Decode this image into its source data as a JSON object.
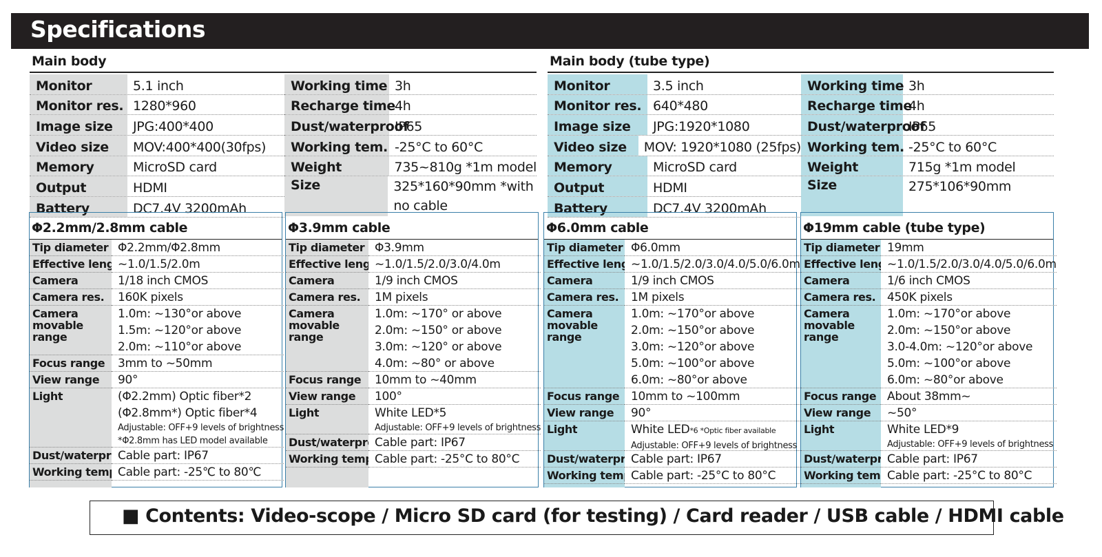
{
  "title": "Specifications",
  "main_body": {
    "title": "Main body",
    "left": [
      {
        "label": "Monitor",
        "value": "5.1 inch"
      },
      {
        "label": "Monitor res.",
        "value": "1280*960"
      },
      {
        "label": "Image size",
        "value": "JPG:400*400"
      },
      {
        "label": "Video size",
        "value": "MOV:400*400(30fps)"
      },
      {
        "label": "Memory",
        "value": "MicroSD card"
      },
      {
        "label": "Output",
        "value": "HDMI"
      },
      {
        "label": "Battery",
        "value": "DC7.4V 3200mAh"
      }
    ],
    "right": [
      {
        "label": "Working time",
        "value": "3h"
      },
      {
        "label": "Recharge time",
        "value": "4h"
      },
      {
        "label": "Dust/waterproof",
        "value": "IP65"
      },
      {
        "label": "Working tem.",
        "value": "-25°C to 60°C"
      },
      {
        "label": "Weight",
        "value": "735~810g *1m model"
      },
      {
        "label": "Size",
        "value": "325*160*90mm *with no cable"
      }
    ]
  },
  "main_body_tube": {
    "title": "Main body (tube type)",
    "left": [
      {
        "label": "Monitor",
        "value": "3.5 inch"
      },
      {
        "label": "Monitor res.",
        "value": "640*480"
      },
      {
        "label": "Image size",
        "value": "JPG:1920*1080"
      },
      {
        "label": "Video size",
        "value": "MOV: 1920*1080 (25fps)"
      },
      {
        "label": "Memory",
        "value": "MicroSD card"
      },
      {
        "label": "Output",
        "value": "HDMI"
      },
      {
        "label": "Battery",
        "value": "DC7.4V 3200mAh"
      }
    ],
    "right": [
      {
        "label": "Working time",
        "value": "3h"
      },
      {
        "label": "Recharge time",
        "value": "4h"
      },
      {
        "label": "Dust/waterproof",
        "value": "IP65"
      },
      {
        "label": "Working tem.",
        "value": "-25°C to 60°C"
      },
      {
        "label": "Weight",
        "value": "715g *1m model"
      },
      {
        "label": "Size",
        "value": "275*106*90mm"
      }
    ]
  },
  "cables": [
    {
      "title": "Φ2.2mm/2.8mm cable",
      "rows": [
        {
          "label": [
            "Tip diameter"
          ],
          "lines": [
            {
              "t": "Φ2.2mm/Φ2.8mm"
            }
          ]
        },
        {
          "label": [
            "Effective length"
          ],
          "lines": [
            {
              "t": "~1.0/1.5/2.0m"
            }
          ]
        },
        {
          "label": [
            "Camera"
          ],
          "lines": [
            {
              "t": "1/18 inch CMOS"
            }
          ]
        },
        {
          "label": [
            "Camera res."
          ],
          "lines": [
            {
              "t": "160K pixels"
            }
          ]
        },
        {
          "label": [
            "Camera",
            "movable",
            "range"
          ],
          "lines": [
            {
              "t": "1.0m: ~130°or above"
            },
            {
              "t": "1.5m: ~120°or above"
            },
            {
              "t": "2.0m: ~110°or above"
            }
          ]
        },
        {
          "label": [
            "Focus range"
          ],
          "lines": [
            {
              "t": "3mm to ~50mm"
            }
          ]
        },
        {
          "label": [
            "View range"
          ],
          "lines": [
            {
              "t": "90°"
            }
          ]
        },
        {
          "label": [
            "Light"
          ],
          "lines": [
            {
              "t": "(Φ2.2mm) Optic fiber*2"
            },
            {
              "t": "(Φ2.8mm*) Optic fiber*4"
            },
            {
              "t": "Adjustable: OFF+9 levels of brightness",
              "s": 1
            },
            {
              "t": "*Φ2.8mm has LED model available",
              "s": 1
            }
          ]
        },
        {
          "label": [
            "Dust/waterproof"
          ],
          "lines": [
            {
              "t": "Cable part: IP67"
            }
          ]
        },
        {
          "label": [
            "Working temp"
          ],
          "lines": [
            {
              "t": "Cable part: -25℃ to 80℃"
            }
          ]
        }
      ]
    },
    {
      "title": "Φ3.9mm cable",
      "rows": [
        {
          "label": [
            "Tip diameter"
          ],
          "lines": [
            {
              "t": "Φ3.9mm"
            }
          ]
        },
        {
          "label": [
            "Effective length"
          ],
          "lines": [
            {
              "t": "~1.0/1.5/2.0/3.0/4.0m"
            }
          ]
        },
        {
          "label": [
            "Camera"
          ],
          "lines": [
            {
              "t": "1/9 inch CMOS"
            }
          ]
        },
        {
          "label": [
            "Camera res."
          ],
          "lines": [
            {
              "t": "1M pixels"
            }
          ]
        },
        {
          "label": [
            "Camera",
            "movable",
            "range"
          ],
          "lines": [
            {
              "t": "1.0m: ~170° or above"
            },
            {
              "t": "2.0m: ~150° or above"
            },
            {
              "t": "3.0m: ~120° or above"
            },
            {
              "t": "4.0m: ~80° or above"
            }
          ]
        },
        {
          "label": [
            "Focus range"
          ],
          "lines": [
            {
              "t": "10mm to ~40mm"
            }
          ]
        },
        {
          "label": [
            "View range"
          ],
          "lines": [
            {
              "t": "100°"
            }
          ]
        },
        {
          "label": [
            "Light"
          ],
          "lines": [
            {
              "t": "White LED*5"
            },
            {
              "t": "Adjustable: OFF+9 levels of brightness",
              "s": 1
            }
          ]
        },
        {
          "label": [
            "Dust/waterproof"
          ],
          "lines": [
            {
              "t": "Cable part: IP67"
            }
          ]
        },
        {
          "label": [
            "Working temp"
          ],
          "lines": [
            {
              "t": "Cable part: -25°C to 80°C"
            }
          ]
        }
      ]
    },
    {
      "title": "Φ6.0mm cable",
      "rows": [
        {
          "label": [
            "Tip diameter"
          ],
          "lines": [
            {
              "t": "Φ6.0mm"
            }
          ]
        },
        {
          "label": [
            "Effective length"
          ],
          "lines": [
            {
              "t": "~1.0/1.5/2.0/3.0/4.0/5.0/6.0m"
            }
          ]
        },
        {
          "label": [
            "Camera"
          ],
          "lines": [
            {
              "t": "1/9 inch CMOS"
            }
          ]
        },
        {
          "label": [
            "Camera res."
          ],
          "lines": [
            {
              "t": "1M pixels"
            }
          ]
        },
        {
          "label": [
            "Camera",
            "movable",
            "range"
          ],
          "lines": [
            {
              "t": "1.0m: ~170°or above"
            },
            {
              "t": "2.0m: ~150°or above"
            },
            {
              "t": "3.0m: ~120°or above"
            },
            {
              "t": "5.0m: ~100°or above"
            },
            {
              "t": "6.0m: ~80°or above"
            }
          ]
        },
        {
          "label": [
            "Focus range"
          ],
          "lines": [
            {
              "t": "10mm to ~100mm"
            }
          ]
        },
        {
          "label": [
            "View range"
          ],
          "lines": [
            {
              "t": "90°"
            }
          ]
        },
        {
          "label": [
            "Light"
          ],
          "lines": [
            {
              "t": "White LED",
              "note": "*6 *Optic fiber available"
            },
            {
              "t": "Adjustable: OFF+9 levels of brightness",
              "s": 1
            }
          ]
        },
        {
          "label": [
            "Dust/waterproof"
          ],
          "lines": [
            {
              "t": "Cable part: IP67"
            }
          ]
        },
        {
          "label": [
            "Working temp"
          ],
          "lines": [
            {
              "t": "Cable part: -25°C to 80°C"
            }
          ]
        }
      ]
    },
    {
      "title": "Φ19mm cable (tube type)",
      "rows": [
        {
          "label": [
            "Tip diameter"
          ],
          "lines": [
            {
              "t": "19mm"
            }
          ]
        },
        {
          "label": [
            "Effective length"
          ],
          "lines": [
            {
              "t": "~1.0/1.5/2.0/3.0/4.0/5.0/6.0m"
            }
          ]
        },
        {
          "label": [
            "Camera"
          ],
          "lines": [
            {
              "t": "1/6 inch CMOS"
            }
          ]
        },
        {
          "label": [
            "Camera res."
          ],
          "lines": [
            {
              "t": "450K pixels"
            }
          ]
        },
        {
          "label": [
            "Camera",
            "movable",
            "range"
          ],
          "lines": [
            {
              "t": "1.0m: ~170°or above"
            },
            {
              "t": "2.0m: ~150°or above"
            },
            {
              "t": "3.0-4.0m: ~120°or above"
            },
            {
              "t": "5.0m: ~100°or above"
            },
            {
              "t": "6.0m: ~80°or above"
            }
          ]
        },
        {
          "label": [
            "Focus range"
          ],
          "lines": [
            {
              "t": "About 38mm~"
            }
          ]
        },
        {
          "label": [
            "View range"
          ],
          "lines": [
            {
              "t": "~50°"
            }
          ]
        },
        {
          "label": [
            "Light"
          ],
          "lines": [
            {
              "t": "White LED*9"
            },
            {
              "t": "Adjustable: OFF+9 levels of brightness",
              "s": 1
            }
          ]
        },
        {
          "label": [
            "Dust/waterproof"
          ],
          "lines": [
            {
              "t": "Cable part: IP67"
            }
          ]
        },
        {
          "label": [
            "Working temp"
          ],
          "lines": [
            {
              "t": "Cable part: -25°C to 80°C"
            }
          ]
        }
      ]
    }
  ],
  "contents": "■ Contents:   Video-scope / Micro SD card (for testing) / Card reader / USB cable / HDMI cable",
  "colors": {
    "header_bg": "#231f20",
    "gray_label": "#dcdddd",
    "blue_label": "#b6dde5",
    "box_border": "#3a7fa8"
  }
}
